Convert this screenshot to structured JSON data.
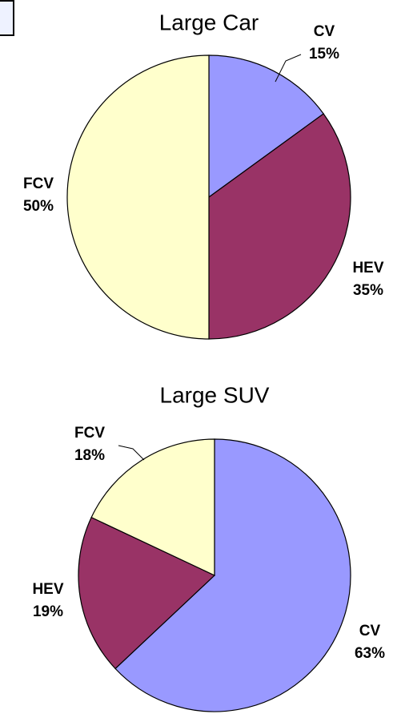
{
  "chart_data": [
    {
      "type": "pie",
      "title": "Large Car",
      "categories": [
        "CV",
        "HEV",
        "FCV"
      ],
      "values": [
        15,
        35,
        50
      ],
      "value_labels": [
        "15%",
        "35%",
        "50%"
      ],
      "colors": [
        "#9999ff",
        "#993366",
        "#ffffcc"
      ]
    },
    {
      "type": "pie",
      "title": "Large SUV",
      "categories": [
        "CV",
        "HEV",
        "FCV"
      ],
      "values": [
        63,
        19,
        18
      ],
      "value_labels": [
        "63%",
        "19%",
        "18%"
      ],
      "colors": [
        "#9999ff",
        "#993366",
        "#ffffcc"
      ]
    }
  ]
}
